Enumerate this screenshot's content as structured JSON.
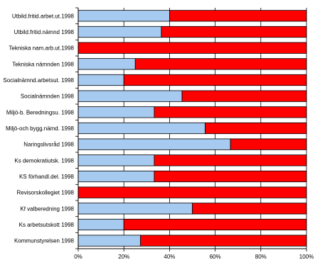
{
  "chart_data": {
    "type": "bar",
    "orientation": "horizontal",
    "stacked": "100%",
    "categories": [
      "Utbild.fritid.arbet.ut.1998",
      "Utbild.fritid.nämnd 1998",
      "Tekniska nam.arb.ut.1998",
      "Tekniska nämnden 1998",
      "Socialnämnd.arbetsut. 1998",
      "Socialnämnden 1998",
      "Miljö-b. Beredningsu. 1998",
      "Miljö-och bygg.nämd. 1998",
      "Naringslivsråd 1998",
      "Ks demokratiutsk. 1998",
      "KS förhandl.del. 1998",
      "Revisorskollegiet 1998",
      "Kf valberedning 1998",
      "Ks arbetsutskott 1998",
      "Kommunstyrelsen 1998"
    ],
    "series": [
      {
        "values": [
          40,
          36.4,
          0,
          25,
          20,
          45.5,
          33.3,
          55.6,
          66.7,
          33.3,
          33.3,
          0,
          50,
          20,
          27.3
        ]
      },
      {
        "values": [
          60,
          63.6,
          100,
          75,
          80,
          54.5,
          66.7,
          44.4,
          33.3,
          66.7,
          66.7,
          100,
          50,
          80,
          72.7
        ]
      }
    ],
    "colors": [
      "#a6caf0",
      "#ff0000"
    ],
    "xlim": [
      0,
      100
    ],
    "x_ticks": [
      "0%",
      "20%",
      "40%",
      "60%",
      "80%",
      "100%"
    ],
    "grid": "vertical",
    "legend": "none"
  }
}
